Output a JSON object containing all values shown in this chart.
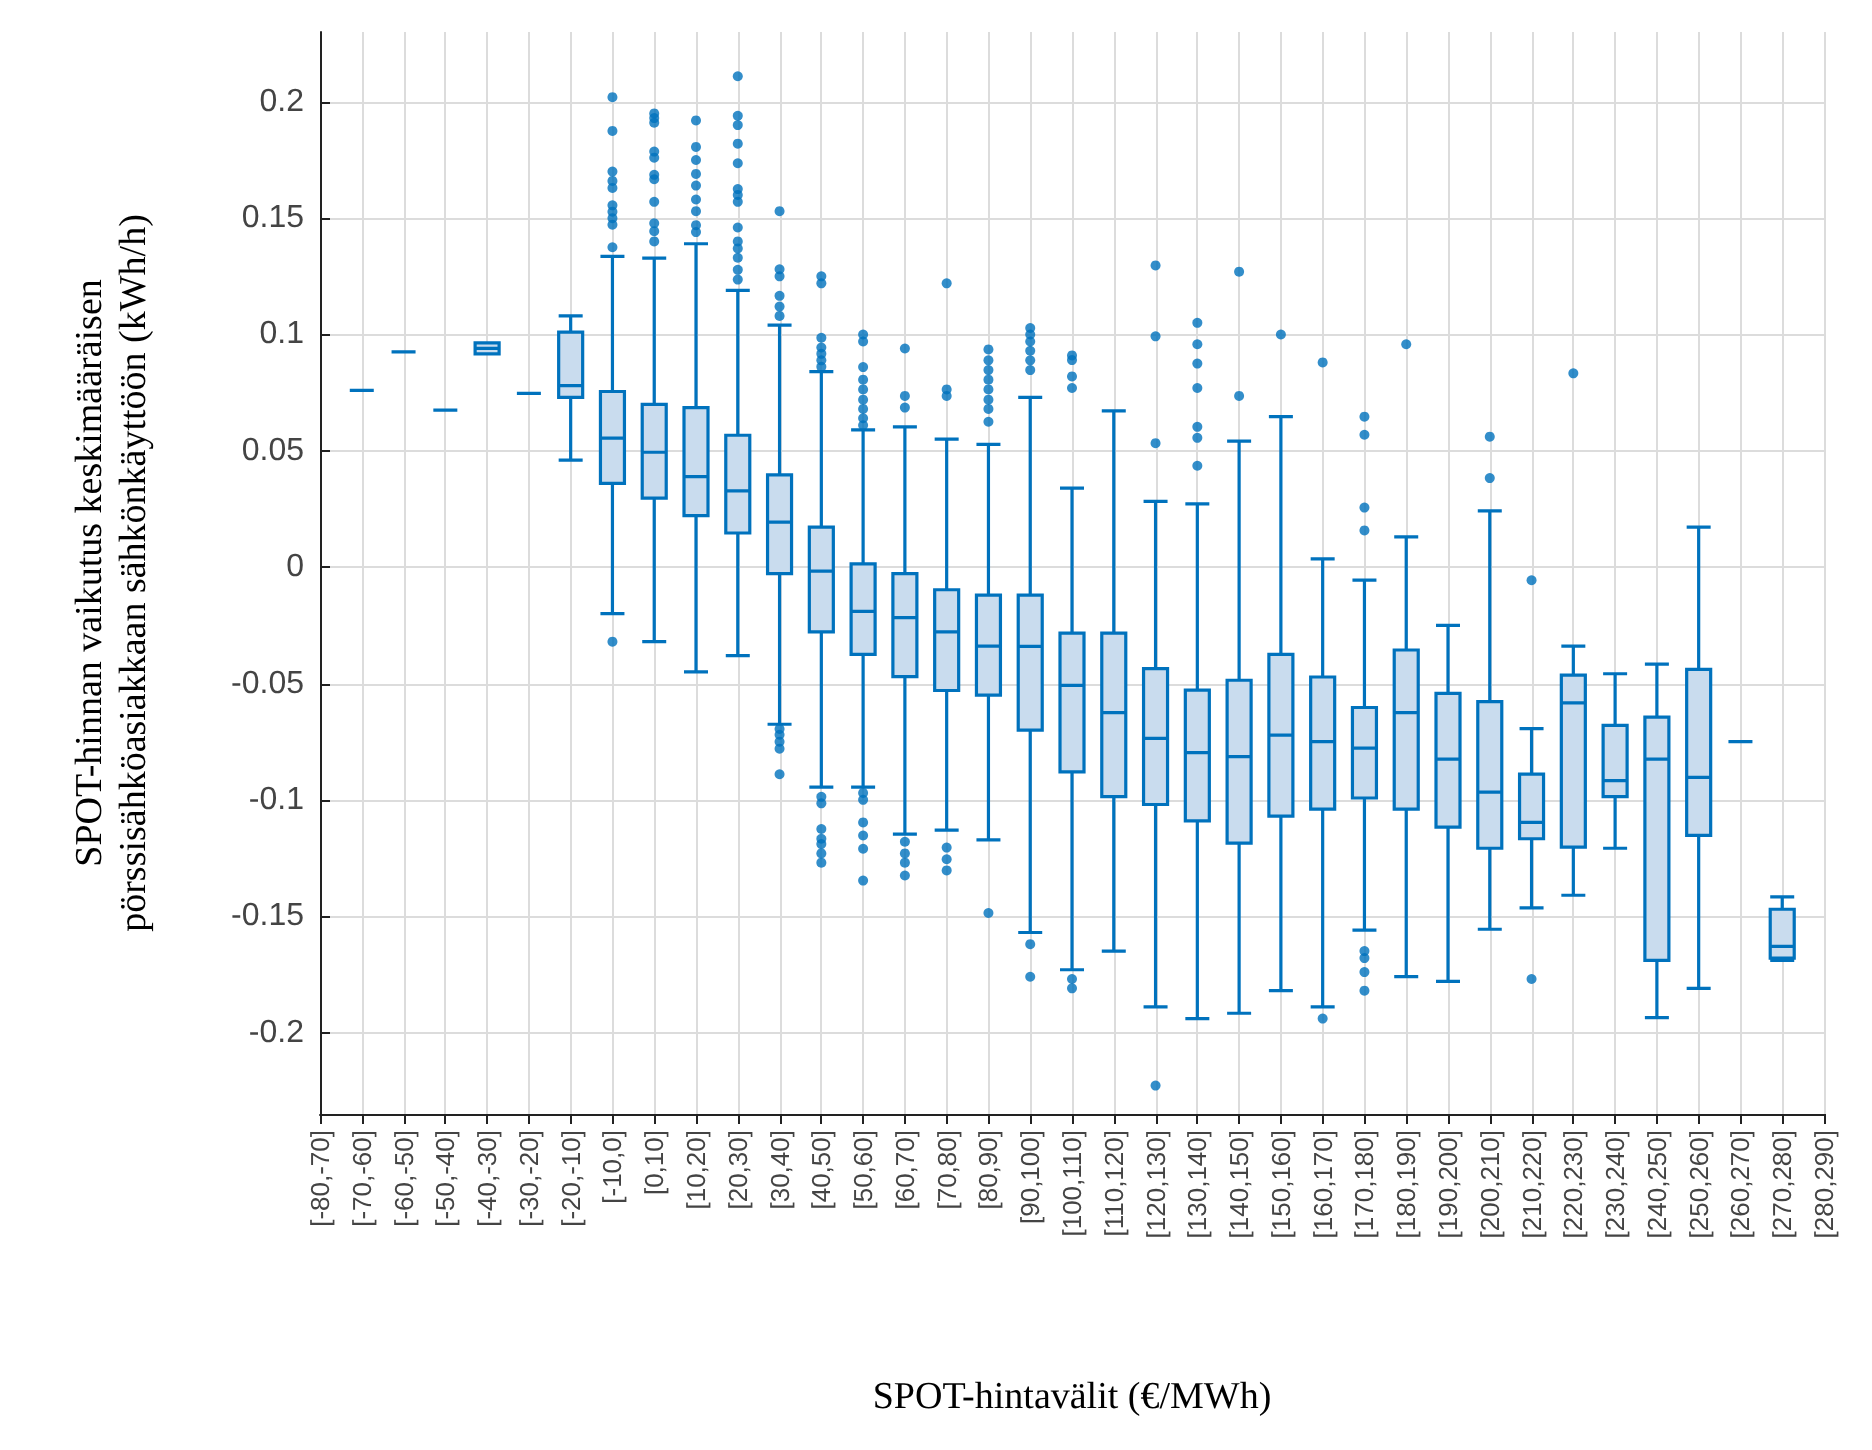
{
  "chart_data": {
    "type": "box",
    "xlabel": "SPOT-hintavälit (€/MWh)",
    "ylabel": "SPOT-hinnan vaikutus keskimääräisen\npörssisähköasiakkaan sähkönkäyttöön (kWh/h)",
    "categories": [
      "[-80,-70]",
      "[-70,-60]",
      "[-60,-50]",
      "[-50,-40]",
      "[-40,-30]",
      "[-30,-20]",
      "[-20,-10]",
      "[-10,0]",
      "[0,10]",
      "[10,20]",
      "[20,30]",
      "[30,40]",
      "[40,50]",
      "[50,60]",
      "[60,70]",
      "[70,80]",
      "[80,90]",
      "[90,100]",
      "[100,110]",
      "[110,120]",
      "[120,130]",
      "[130,140]",
      "[140,150]",
      "[150,160]",
      "[160,170]",
      "[170,180]",
      "[180,190]",
      "[190,200]",
      "[200,210]",
      "[210,220]",
      "[220,230]",
      "[230,240]",
      "[240,250]",
      "[250,260]",
      "[260,270]",
      "[270,280]",
      "[280,290]"
    ],
    "ylim": [
      -0.235,
      0.23
    ],
    "yticks": [
      -0.2,
      -0.15,
      -0.1,
      -0.05,
      0,
      0.05,
      0.1,
      0.15,
      0.2
    ],
    "grid": true,
    "marker": "circle",
    "series": [
      {
        "color": "#0072bd",
        "boxes": [
          null,
          {
            "low": 0.076,
            "q1": 0.076,
            "median": 0.076,
            "q3": 0.076,
            "high": 0.076
          },
          {
            "low": 0.0925,
            "q1": 0.0925,
            "median": 0.0925,
            "q3": 0.0925,
            "high": 0.0925
          },
          {
            "low": 0.0675,
            "q1": 0.0675,
            "median": 0.0675,
            "q3": 0.0675,
            "high": 0.0675
          },
          {
            "low": 0.0917,
            "q1": 0.0917,
            "median": 0.094,
            "q3": 0.0964,
            "high": 0.0964
          },
          {
            "low": 0.0747,
            "q1": 0.0747,
            "median": 0.0747,
            "q3": 0.0747,
            "high": 0.0747
          },
          {
            "low": 0.046,
            "q1": 0.073,
            "median": 0.078,
            "q3": 0.101,
            "high": 0.108
          },
          {
            "low": -0.02,
            "q1": 0.036,
            "median": 0.0555,
            "q3": 0.0755,
            "high": 0.1336,
            "outliers": [
              0.202,
              0.1875,
              0.17,
              0.166,
              0.163,
              0.1555,
              0.1528,
              0.15,
              0.1472,
              0.1375,
              -0.032
            ]
          },
          {
            "low": -0.032,
            "q1": 0.0297,
            "median": 0.0494,
            "q3": 0.07,
            "high": 0.1328,
            "outliers": [
              0.195,
              0.193,
              0.191,
              0.1786,
              0.176,
              0.1686,
              0.1667,
              0.157,
              0.1478,
              0.1444,
              0.14
            ]
          },
          {
            "low": -0.045,
            "q1": 0.0222,
            "median": 0.0389,
            "q3": 0.0686,
            "high": 0.139,
            "outliers": [
              0.192,
              0.1806,
              0.175,
              0.169,
              0.164,
              0.158,
              0.153,
              0.147,
              0.144
            ]
          },
          {
            "low": -0.038,
            "q1": 0.0147,
            "median": 0.0328,
            "q3": 0.0567,
            "high": 0.119,
            "outliers": [
              0.211,
              0.194,
              0.19,
              0.182,
              0.1736,
              0.1625,
              0.16,
              0.157,
              0.146,
              0.14,
              0.137,
              0.133,
              0.1278,
              0.1236
            ]
          },
          {
            "low": -0.0675,
            "q1": -0.0028,
            "median": 0.0194,
            "q3": 0.0397,
            "high": 0.104,
            "outliers": [
              0.153,
              0.128,
              0.125,
              0.1166,
              0.112,
              0.108,
              -0.0695,
              -0.072,
              -0.075,
              -0.078,
              -0.089
            ]
          },
          {
            "low": -0.0945,
            "q1": -0.0278,
            "median": -0.0017,
            "q3": 0.0172,
            "high": 0.084,
            "outliers": [
              0.125,
              0.122,
              0.0986,
              0.0944,
              0.0917,
              0.0889,
              0.0861,
              -0.0987,
              -0.1015,
              -0.1125,
              -0.1167,
              -0.119,
              -0.123,
              -0.127
            ]
          },
          {
            "low": -0.0945,
            "q1": -0.0375,
            "median": -0.019,
            "q3": 0.0014,
            "high": 0.059,
            "outliers": [
              0.1,
              0.097,
              0.086,
              0.0806,
              0.0764,
              0.072,
              0.068,
              0.064,
              0.061,
              -0.097,
              -0.1,
              -0.1097,
              -0.1153,
              -0.121,
              -0.1347
            ]
          },
          {
            "low": -0.1147,
            "q1": -0.047,
            "median": -0.0217,
            "q3": -0.0028,
            "high": 0.0603,
            "outliers": [
              0.094,
              0.0736,
              0.0686,
              -0.118,
              -0.123,
              -0.127,
              -0.1325
            ]
          },
          {
            "low": -0.113,
            "q1": -0.053,
            "median": -0.0278,
            "q3": -0.0097,
            "high": 0.055,
            "outliers": [
              0.122,
              0.0764,
              0.0736,
              -0.1205,
              -0.1255,
              -0.1303
            ]
          },
          {
            "low": -0.1172,
            "q1": -0.055,
            "median": -0.0339,
            "q3": -0.012,
            "high": 0.0528,
            "outliers": [
              0.0936,
              0.0889,
              0.0847,
              0.0806,
              0.0764,
              0.072,
              0.068,
              0.0625,
              -0.1486
            ]
          },
          {
            "low": -0.157,
            "q1": -0.07,
            "median": -0.034,
            "q3": -0.012,
            "high": 0.073,
            "outliers": [
              0.1028,
              0.1,
              0.097,
              0.093,
              0.0889,
              0.0847,
              -0.162,
              -0.176
            ]
          },
          {
            "low": -0.173,
            "q1": -0.088,
            "median": -0.0508,
            "q3": -0.0283,
            "high": 0.034,
            "outliers": [
              0.091,
              0.089,
              0.082,
              0.077,
              -0.177,
              -0.181
            ]
          },
          {
            "low": -0.165,
            "q1": -0.0986,
            "median": -0.0625,
            "q3": -0.0283,
            "high": 0.0672
          },
          {
            "low": -0.189,
            "q1": -0.102,
            "median": -0.0736,
            "q3": -0.0436,
            "high": 0.0283,
            "outliers": [
              0.1297,
              0.0992,
              0.0533,
              -0.2228
            ]
          },
          {
            "low": -0.194,
            "q1": -0.109,
            "median": -0.0797,
            "q3": -0.0528,
            "high": 0.0272,
            "outliers": [
              0.105,
              0.0958,
              0.0875,
              0.077,
              0.0603,
              0.0556,
              0.0436
            ]
          },
          {
            "low": -0.1917,
            "q1": -0.1186,
            "median": -0.0814,
            "q3": -0.0486,
            "high": 0.0542,
            "outliers": [
              0.127,
              0.0736
            ]
          },
          {
            "low": -0.182,
            "q1": -0.107,
            "median": -0.0722,
            "q3": -0.0375,
            "high": 0.0647,
            "outliers": [
              0.1
            ]
          },
          {
            "low": -0.189,
            "q1": -0.104,
            "median": -0.075,
            "q3": -0.0472,
            "high": 0.0036,
            "outliers": [
              0.088,
              -0.194
            ]
          },
          {
            "low": -0.156,
            "q1": -0.0992,
            "median": -0.0778,
            "q3": -0.0603,
            "high": -0.0056,
            "outliers": [
              0.0647,
              0.0569,
              0.0256,
              0.0158,
              -0.165,
              -0.168,
              -0.174,
              -0.182
            ]
          },
          {
            "low": -0.176,
            "q1": -0.104,
            "median": -0.0625,
            "q3": -0.0356,
            "high": 0.013,
            "outliers": [
              0.0958
            ]
          },
          {
            "low": -0.178,
            "q1": -0.1117,
            "median": -0.0825,
            "q3": -0.0542,
            "high": -0.025
          },
          {
            "low": -0.1556,
            "q1": -0.1208,
            "median": -0.0967,
            "q3": -0.0578,
            "high": 0.0242,
            "outliers": [
              0.0561,
              0.0383
            ]
          },
          {
            "low": -0.1464,
            "q1": -0.1167,
            "median": -0.1097,
            "q3": -0.0889,
            "high": -0.0694,
            "outliers": [
              -0.0056,
              -0.177
            ]
          },
          {
            "low": -0.141,
            "q1": -0.1203,
            "median": -0.0583,
            "q3": -0.0464,
            "high": -0.0339,
            "outliers": [
              0.0833
            ]
          },
          {
            "low": -0.1208,
            "q1": -0.0986,
            "median": -0.0917,
            "q3": -0.068,
            "high": -0.0458
          },
          {
            "low": -0.1936,
            "q1": -0.169,
            "median": -0.0825,
            "q3": -0.0644,
            "high": -0.0417
          },
          {
            "low": -0.181,
            "q1": -0.1153,
            "median": -0.0903,
            "q3": -0.0439,
            "high": 0.0172
          },
          {
            "low": -0.075,
            "q1": -0.075,
            "median": -0.075,
            "q3": -0.075,
            "high": -0.075
          },
          {
            "low": -0.169,
            "q1": -0.168,
            "median": -0.163,
            "q3": -0.147,
            "high": -0.1417
          },
          null
        ]
      }
    ]
  }
}
